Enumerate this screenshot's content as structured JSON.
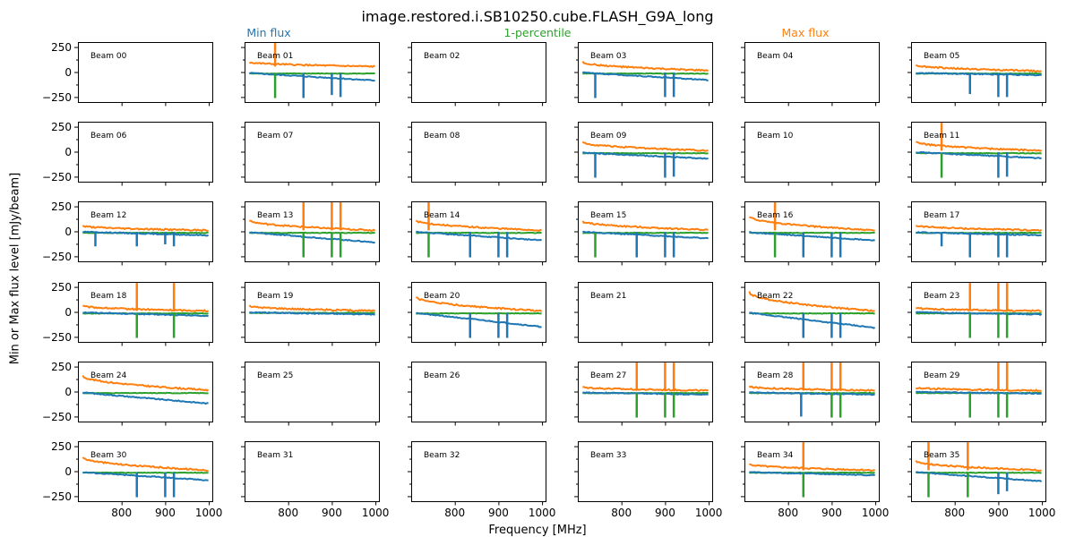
{
  "figure": {
    "title": "image.restored.i.SB10250.cube.FLASH_G9A_long",
    "ylabel": "Min or Max flux level [mJy/beam]",
    "xlabel": "Frequency [MHz]"
  },
  "legend": [
    {
      "label": "Min flux",
      "color": "#1f77b4"
    },
    {
      "label": "1-percentile",
      "color": "#2ca02c"
    },
    {
      "label": "Max flux",
      "color": "#ff7f0e"
    }
  ],
  "colors": {
    "min": "#1f77b4",
    "pct": "#2ca02c",
    "max": "#ff7f0e"
  },
  "chart_data": {
    "type": "line",
    "layout": {
      "rows": 6,
      "cols": 6
    },
    "xlim": [
      700,
      1008
    ],
    "ylim": [
      -300,
      300
    ],
    "xticks": [
      800,
      900,
      1000
    ],
    "yticks": [
      250,
      0,
      -250
    ],
    "yminor": [
      125,
      -125
    ],
    "panels": [
      {
        "label": "Beam 00",
        "has_data": false
      },
      {
        "label": "Beam 01",
        "has_data": true,
        "max": [
          100,
          55
        ],
        "min": [
          -10,
          -85
        ],
        "pct": -15,
        "min_spikes": [
          [
            835,
            -260
          ],
          [
            900,
            -230
          ],
          [
            920,
            -250
          ]
        ],
        "max_spikes": [
          [
            770,
            290
          ]
        ],
        "pct_spikes": [
          [
            770,
            -260
          ]
        ]
      },
      {
        "label": "Beam 02",
        "has_data": false
      },
      {
        "label": "Beam 03",
        "has_data": true,
        "max": [
          100,
          15
        ],
        "min": [
          -5,
          -80
        ],
        "pct": -15,
        "min_spikes": [
          [
            740,
            -260
          ],
          [
            900,
            -250
          ],
          [
            920,
            -250
          ]
        ],
        "max_spikes": [],
        "pct_spikes": []
      },
      {
        "label": "Beam 04",
        "has_data": false
      },
      {
        "label": "Beam 05",
        "has_data": true,
        "max": [
          70,
          10
        ],
        "min": [
          -10,
          -30
        ],
        "pct": -15,
        "min_spikes": [
          [
            835,
            -220
          ],
          [
            900,
            -250
          ],
          [
            920,
            -250
          ]
        ],
        "max_spikes": [],
        "pct_spikes": []
      },
      {
        "label": "Beam 06",
        "has_data": false
      },
      {
        "label": "Beam 07",
        "has_data": false
      },
      {
        "label": "Beam 08",
        "has_data": false
      },
      {
        "label": "Beam 09",
        "has_data": true,
        "max": [
          95,
          10
        ],
        "min": [
          -10,
          -70
        ],
        "pct": -15,
        "min_spikes": [
          [
            740,
            -260
          ],
          [
            900,
            -260
          ],
          [
            920,
            -250
          ]
        ],
        "max_spikes": [],
        "pct_spikes": []
      },
      {
        "label": "Beam 10",
        "has_data": false
      },
      {
        "label": "Beam 11",
        "has_data": true,
        "max": [
          100,
          10
        ],
        "min": [
          -5,
          -65
        ],
        "pct": -15,
        "min_spikes": [
          [
            900,
            -260
          ],
          [
            920,
            -250
          ]
        ],
        "max_spikes": [
          [
            770,
            290
          ]
        ],
        "pct_spikes": [
          [
            770,
            -260
          ]
        ]
      },
      {
        "label": "Beam 12",
        "has_data": true,
        "max": [
          55,
          10
        ],
        "min": [
          -5,
          -40
        ],
        "pct": -15,
        "min_spikes": [
          [
            740,
            -150
          ],
          [
            835,
            -150
          ],
          [
            900,
            -130
          ],
          [
            920,
            -150
          ]
        ],
        "max_spikes": [],
        "pct_spikes": []
      },
      {
        "label": "Beam 13",
        "has_data": true,
        "max": [
          110,
          10
        ],
        "min": [
          -10,
          -110
        ],
        "pct": -15,
        "min_spikes": [],
        "max_spikes": [
          [
            835,
            290
          ],
          [
            900,
            290
          ],
          [
            920,
            290
          ]
        ],
        "pct_spikes": [
          [
            835,
            -260
          ],
          [
            900,
            -260
          ],
          [
            920,
            -260
          ]
        ]
      },
      {
        "label": "Beam 14",
        "has_data": true,
        "max": [
          110,
          10
        ],
        "min": [
          -5,
          -90
        ],
        "pct": -15,
        "min_spikes": [
          [
            835,
            -260
          ],
          [
            900,
            -260
          ],
          [
            920,
            -260
          ]
        ],
        "max_spikes": [
          [
            740,
            290
          ]
        ],
        "pct_spikes": [
          [
            740,
            -260
          ]
        ]
      },
      {
        "label": "Beam 15",
        "has_data": true,
        "max": [
          100,
          15
        ],
        "min": [
          -5,
          -70
        ],
        "pct": -15,
        "min_spikes": [
          [
            835,
            -260
          ],
          [
            900,
            -260
          ],
          [
            920,
            -260
          ]
        ],
        "max_spikes": [],
        "pct_spikes": [
          [
            740,
            -260
          ]
        ]
      },
      {
        "label": "Beam 16",
        "has_data": true,
        "max": [
          150,
          10
        ],
        "min": [
          -10,
          -90
        ],
        "pct": -15,
        "min_spikes": [
          [
            835,
            -260
          ],
          [
            900,
            -260
          ],
          [
            920,
            -260
          ]
        ],
        "max_spikes": [
          [
            770,
            290
          ]
        ],
        "pct_spikes": [
          [
            770,
            -260
          ]
        ]
      },
      {
        "label": "Beam 17",
        "has_data": true,
        "max": [
          60,
          10
        ],
        "min": [
          -10,
          -40
        ],
        "pct": -15,
        "min_spikes": [
          [
            770,
            -150
          ],
          [
            835,
            -260
          ],
          [
            900,
            -260
          ],
          [
            920,
            -260
          ]
        ],
        "max_spikes": [],
        "pct_spikes": []
      },
      {
        "label": "Beam 18",
        "has_data": true,
        "max": [
          60,
          10
        ],
        "min": [
          -5,
          -40
        ],
        "pct": -15,
        "min_spikes": [],
        "max_spikes": [
          [
            835,
            290
          ],
          [
            920,
            290
          ]
        ],
        "pct_spikes": [
          [
            835,
            -260
          ],
          [
            920,
            -260
          ]
        ]
      },
      {
        "label": "Beam 19",
        "has_data": true,
        "max": [
          60,
          10
        ],
        "min": [
          -5,
          -25
        ],
        "pct": -10,
        "min_spikes": [],
        "max_spikes": [],
        "pct_spikes": []
      },
      {
        "label": "Beam 20",
        "has_data": true,
        "max": [
          150,
          10
        ],
        "min": [
          -10,
          -150
        ],
        "pct": -15,
        "min_spikes": [
          [
            835,
            -260
          ],
          [
            900,
            -260
          ],
          [
            920,
            -260
          ]
        ],
        "max_spikes": [],
        "pct_spikes": []
      },
      {
        "label": "Beam 21",
        "has_data": false
      },
      {
        "label": "Beam 22",
        "has_data": true,
        "max": [
          200,
          10
        ],
        "min": [
          -10,
          -160
        ],
        "pct": -15,
        "min_spikes": [
          [
            835,
            -260
          ],
          [
            900,
            -260
          ],
          [
            920,
            -260
          ]
        ],
        "max_spikes": [],
        "pct_spikes": []
      },
      {
        "label": "Beam 23",
        "has_data": true,
        "max": [
          40,
          10
        ],
        "min": [
          -5,
          -25
        ],
        "pct": -15,
        "min_spikes": [],
        "max_spikes": [
          [
            835,
            290
          ],
          [
            900,
            290
          ],
          [
            920,
            290
          ]
        ],
        "pct_spikes": [
          [
            835,
            -260
          ],
          [
            900,
            -260
          ],
          [
            920,
            -260
          ]
        ]
      },
      {
        "label": "Beam 24",
        "has_data": true,
        "max": [
          160,
          15
        ],
        "min": [
          -10,
          -120
        ],
        "pct": -15,
        "min_spikes": [],
        "max_spikes": [],
        "pct_spikes": []
      },
      {
        "label": "Beam 25",
        "has_data": false
      },
      {
        "label": "Beam 26",
        "has_data": false
      },
      {
        "label": "Beam 27",
        "has_data": true,
        "max": [
          45,
          10
        ],
        "min": [
          -10,
          -30
        ],
        "pct": -15,
        "min_spikes": [],
        "max_spikes": [
          [
            835,
            290
          ],
          [
            900,
            290
          ],
          [
            920,
            290
          ]
        ],
        "pct_spikes": [
          [
            835,
            -260
          ],
          [
            900,
            -260
          ],
          [
            920,
            -260
          ]
        ]
      },
      {
        "label": "Beam 28",
        "has_data": true,
        "max": [
          50,
          10
        ],
        "min": [
          -10,
          -30
        ],
        "pct": -15,
        "min_spikes": [
          [
            830,
            -250
          ]
        ],
        "max_spikes": [
          [
            835,
            290
          ],
          [
            900,
            290
          ],
          [
            920,
            290
          ]
        ],
        "pct_spikes": [
          [
            900,
            -260
          ],
          [
            920,
            -260
          ]
        ]
      },
      {
        "label": "Beam 29",
        "has_data": true,
        "max": [
          40,
          10
        ],
        "min": [
          -5,
          -20
        ],
        "pct": -15,
        "min_spikes": [],
        "max_spikes": [
          [
            900,
            290
          ],
          [
            920,
            290
          ]
        ],
        "pct_spikes": [
          [
            835,
            -260
          ],
          [
            900,
            -260
          ],
          [
            920,
            -260
          ]
        ]
      },
      {
        "label": "Beam 30",
        "has_data": true,
        "max": [
          140,
          10
        ],
        "min": [
          -10,
          -90
        ],
        "pct": -15,
        "min_spikes": [
          [
            835,
            -260
          ],
          [
            900,
            -260
          ],
          [
            920,
            -260
          ]
        ],
        "max_spikes": [],
        "pct_spikes": []
      },
      {
        "label": "Beam 31",
        "has_data": false
      },
      {
        "label": "Beam 32",
        "has_data": false
      },
      {
        "label": "Beam 33",
        "has_data": false
      },
      {
        "label": "Beam 34",
        "has_data": true,
        "max": [
          70,
          10
        ],
        "min": [
          -10,
          -40
        ],
        "pct": -15,
        "min_spikes": [],
        "max_spikes": [
          [
            835,
            290
          ]
        ],
        "pct_spikes": [
          [
            835,
            -260
          ]
        ]
      },
      {
        "label": "Beam 35",
        "has_data": true,
        "max": [
          100,
          10
        ],
        "min": [
          -10,
          -100
        ],
        "pct": -15,
        "min_spikes": [
          [
            900,
            -230
          ],
          [
            920,
            -200
          ]
        ],
        "max_spikes": [
          [
            740,
            290
          ],
          [
            830,
            290
          ]
        ],
        "pct_spikes": [
          [
            740,
            -260
          ],
          [
            830,
            -260
          ]
        ]
      }
    ]
  }
}
